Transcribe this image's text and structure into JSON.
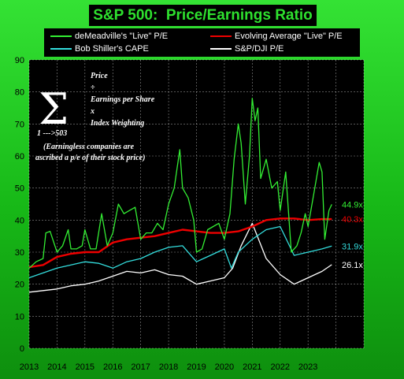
{
  "title": "S&P 500:  Price/Earnings Ratio",
  "legend": [
    {
      "name": "deMeadville's \"Live\" P/E",
      "color": "#33ee33"
    },
    {
      "name": "Evolving Average \"Live\" P/E",
      "color": "#ee0000"
    },
    {
      "name": "Bob Shiller's CAPE",
      "color": "#33dddd"
    },
    {
      "name": "S&P/DJI P/E",
      "color": "#ffffff"
    }
  ],
  "annotation": {
    "sigma": "Σ",
    "lines": [
      "Price",
      "÷",
      "Earnings per Share",
      "x",
      "Index Weighting"
    ],
    "range": "1 --->503",
    "footnote": [
      "(Earningless companies are",
      "ascribed a p/e of their stock price)"
    ]
  },
  "chart_data": {
    "type": "line",
    "title": "S&P 500:  Price/Earnings Ratio",
    "xlabel": "",
    "ylabel": "",
    "ylim": [
      0,
      90
    ],
    "yticks": [
      "0",
      "10",
      "20",
      "30",
      "40",
      "50",
      "60",
      "70",
      "80",
      "90"
    ],
    "xlim": [
      2013,
      2025
    ],
    "xticks": [
      "2013",
      "2014",
      "2015",
      "2016",
      "2017",
      "2018",
      "2019",
      "2020",
      "2021",
      "2022",
      "2023"
    ],
    "grid": true,
    "legend_position": "top",
    "end_labels": [
      {
        "text": "44.9x",
        "color": "#33ee33",
        "y": 44.9
      },
      {
        "text": "40.3x",
        "color": "#ee0000",
        "y": 40.3
      },
      {
        "text": "31.9x",
        "color": "#33dddd",
        "y": 31.9
      },
      {
        "text": "26.1x",
        "color": "#ffffff",
        "y": 26.1
      }
    ],
    "series": [
      {
        "name": "deMeadville's \"Live\" P/E",
        "color": "#33ee33",
        "x": [
          2013.0,
          2013.25,
          2013.5,
          2013.6,
          2013.75,
          2014.0,
          2014.2,
          2014.4,
          2014.5,
          2014.7,
          2014.9,
          2015.0,
          2015.2,
          2015.4,
          2015.6,
          2015.8,
          2016.0,
          2016.2,
          2016.4,
          2016.6,
          2016.8,
          2017.0,
          2017.2,
          2017.4,
          2017.6,
          2017.8,
          2018.0,
          2018.2,
          2018.4,
          2018.5,
          2018.7,
          2018.9,
          2019.0,
          2019.2,
          2019.4,
          2019.6,
          2019.8,
          2020.0,
          2020.2,
          2020.35,
          2020.5,
          2020.6,
          2020.75,
          2020.9,
          2021.0,
          2021.1,
          2021.2,
          2021.3,
          2021.5,
          2021.7,
          2021.9,
          2022.0,
          2022.2,
          2022.4,
          2022.6,
          2022.75,
          2022.9,
          2023.0,
          2023.2,
          2023.4,
          2023.5,
          2023.6,
          2023.75,
          2023.85
        ],
        "y": [
          25,
          27,
          28,
          36,
          36.5,
          30,
          32,
          37,
          31,
          31,
          32,
          37,
          31,
          31,
          42,
          32,
          36,
          45,
          42,
          43,
          44,
          34,
          36,
          36,
          39,
          37,
          45,
          50,
          62,
          50,
          47,
          40,
          30,
          31,
          37,
          38,
          39,
          34,
          42,
          59,
          70,
          64,
          45,
          60,
          78,
          71,
          75,
          53,
          59,
          50,
          52,
          43,
          55,
          30,
          32,
          36,
          42,
          38,
          48,
          58,
          55,
          34,
          43,
          44.9
        ]
      },
      {
        "name": "Evolving Average \"Live\" P/E",
        "color": "#ee0000",
        "x": [
          2013.0,
          2013.5,
          2014.0,
          2014.5,
          2015.0,
          2015.5,
          2016.0,
          2016.5,
          2017.0,
          2017.5,
          2018.0,
          2018.5,
          2019.0,
          2019.5,
          2020.0,
          2020.5,
          2021.0,
          2021.5,
          2022.0,
          2022.5,
          2023.0,
          2023.5,
          2023.85
        ],
        "y": [
          25.3,
          26,
          28.5,
          29.5,
          30,
          30,
          33,
          34,
          34.5,
          35,
          36,
          37,
          36.5,
          36,
          36,
          36.5,
          38,
          40,
          40.5,
          40.5,
          40,
          40.3,
          40.3
        ]
      },
      {
        "name": "Bob Shiller's CAPE",
        "color": "#33dddd",
        "x": [
          2013.0,
          2013.5,
          2014.0,
          2014.5,
          2015.0,
          2015.5,
          2016.0,
          2016.5,
          2017.0,
          2017.5,
          2018.0,
          2018.5,
          2019.0,
          2019.5,
          2020.0,
          2020.25,
          2020.5,
          2021.0,
          2021.5,
          2022.0,
          2022.5,
          2023.0,
          2023.5,
          2023.85
        ],
        "y": [
          22,
          23.5,
          25,
          26,
          27,
          26.5,
          25,
          27,
          28,
          30,
          31.5,
          32,
          27,
          29,
          31,
          25,
          30,
          34,
          37,
          38,
          29,
          30,
          31,
          31.9
        ]
      },
      {
        "name": "S&P/DJI P/E",
        "color": "#ffffff",
        "x": [
          2013.0,
          2013.5,
          2014.0,
          2014.5,
          2015.0,
          2015.5,
          2016.0,
          2016.5,
          2017.0,
          2017.5,
          2018.0,
          2018.5,
          2019.0,
          2019.5,
          2020.0,
          2020.3,
          2020.6,
          2021.0,
          2021.5,
          2022.0,
          2022.5,
          2023.0,
          2023.5,
          2023.85
        ],
        "y": [
          17.5,
          18,
          18.5,
          19.5,
          20,
          21,
          22.5,
          24,
          23.5,
          24.5,
          23,
          22.5,
          20,
          21,
          22,
          25,
          32,
          39,
          28,
          23,
          20,
          22,
          24,
          26.1
        ]
      }
    ]
  }
}
